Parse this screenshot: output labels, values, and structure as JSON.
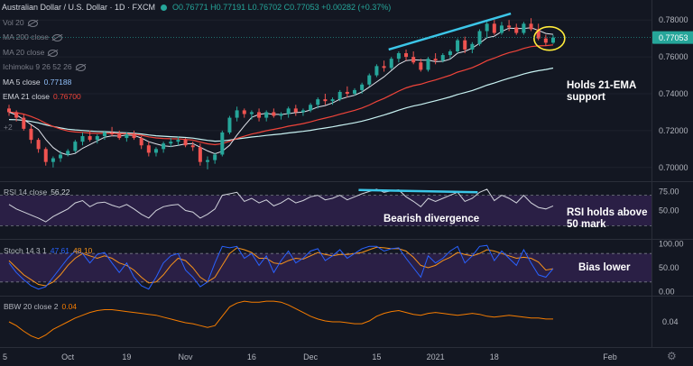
{
  "header": {
    "symbol": "Australian Dollar / U.S. Dollar · 1D · FXCM",
    "ohlc": "O0.76771 H0.77191 L0.76702 C0.77053 +0.00282 (+0.37%)"
  },
  "indicators": {
    "vol": {
      "label": "Vol 20"
    },
    "ma200": {
      "label": "MA 200 close"
    },
    "ma20": {
      "label": "MA 20 close"
    },
    "ichimoku": {
      "label": "Ichimoku 9 26 52 26"
    },
    "ma5": {
      "label": "MA 5 close",
      "value": "0.77188"
    },
    "ema21": {
      "label": "EMA 21 close",
      "value": "0.76700"
    },
    "hidden_label": "",
    "plus2": "+2"
  },
  "annotations": {
    "ema_support_1": "Holds 21-EMA",
    "ema_support_2": "support",
    "bearish_div": "Bearish divergence",
    "rsi_holds_1": "RSI holds above",
    "rsi_holds_2": "50 mark",
    "bias": "Bias lower"
  },
  "panes": {
    "rsi": {
      "label": "RSI 14 close",
      "value": "56.22"
    },
    "stoch": {
      "label": "Stoch 14 3 1",
      "k": "47.61",
      "d": "48.10"
    },
    "bbw": {
      "label": "BBW 20 close 2",
      "value": "0.04"
    }
  },
  "colors": {
    "up": "#26a69a",
    "down": "#ef5350",
    "ema21": "#f0443a",
    "ma5": "#e0e3eb",
    "ma_slow": "#c8f2f2",
    "trend": "#3cc6e8",
    "stoch_k": "#2962ff",
    "stoch_d": "#f7931a",
    "rsi": "#d1d4dc",
    "band": "#2a1f45",
    "bbw": "#f57c00",
    "circle": "#ffeb3b"
  },
  "chart_data": [
    {
      "type": "candlestick",
      "pane": "price",
      "ylim": [
        0.695,
        0.785
      ],
      "yticks": [
        "0.78000",
        "0.76000",
        "0.74000",
        "0.72000",
        "0.70000"
      ],
      "last_price": "0.77053",
      "xticks": [
        "5",
        "Oct",
        "19",
        "Nov",
        "16",
        "Dec",
        "15",
        "2021",
        "18",
        "Feb"
      ],
      "ohlc": [
        [
          0.732,
          0.734,
          0.728,
          0.73
        ],
        [
          0.73,
          0.731,
          0.725,
          0.727
        ],
        [
          0.727,
          0.729,
          0.72,
          0.721
        ],
        [
          0.721,
          0.723,
          0.713,
          0.715
        ],
        [
          0.715,
          0.716,
          0.708,
          0.71
        ],
        [
          0.71,
          0.711,
          0.701,
          0.703
        ],
        [
          0.703,
          0.706,
          0.7,
          0.705
        ],
        [
          0.705,
          0.709,
          0.703,
          0.707
        ],
        [
          0.707,
          0.71,
          0.706,
          0.709
        ],
        [
          0.709,
          0.715,
          0.708,
          0.714
        ],
        [
          0.714,
          0.719,
          0.712,
          0.717
        ],
        [
          0.717,
          0.72,
          0.714,
          0.715
        ],
        [
          0.715,
          0.718,
          0.713,
          0.717
        ],
        [
          0.717,
          0.72,
          0.715,
          0.719
        ],
        [
          0.719,
          0.722,
          0.717,
          0.718
        ],
        [
          0.718,
          0.72,
          0.715,
          0.716
        ],
        [
          0.716,
          0.719,
          0.714,
          0.718
        ],
        [
          0.718,
          0.72,
          0.715,
          0.716
        ],
        [
          0.716,
          0.717,
          0.71,
          0.712
        ],
        [
          0.712,
          0.714,
          0.706,
          0.708
        ],
        [
          0.708,
          0.711,
          0.706,
          0.71
        ],
        [
          0.71,
          0.714,
          0.708,
          0.713
        ],
        [
          0.713,
          0.716,
          0.711,
          0.714
        ],
        [
          0.714,
          0.717,
          0.712,
          0.715
        ],
        [
          0.715,
          0.716,
          0.711,
          0.712
        ],
        [
          0.712,
          0.714,
          0.709,
          0.711
        ],
        [
          0.711,
          0.713,
          0.701,
          0.703
        ],
        [
          0.703,
          0.706,
          0.699,
          0.704
        ],
        [
          0.704,
          0.708,
          0.702,
          0.707
        ],
        [
          0.707,
          0.72,
          0.706,
          0.719
        ],
        [
          0.719,
          0.728,
          0.718,
          0.727
        ],
        [
          0.727,
          0.733,
          0.725,
          0.731
        ],
        [
          0.731,
          0.732,
          0.727,
          0.729
        ],
        [
          0.729,
          0.731,
          0.726,
          0.73
        ],
        [
          0.73,
          0.732,
          0.725,
          0.727
        ],
        [
          0.727,
          0.731,
          0.725,
          0.73
        ],
        [
          0.73,
          0.732,
          0.727,
          0.728
        ],
        [
          0.728,
          0.73,
          0.726,
          0.729
        ],
        [
          0.729,
          0.733,
          0.727,
          0.732
        ],
        [
          0.732,
          0.734,
          0.728,
          0.73
        ],
        [
          0.73,
          0.732,
          0.728,
          0.731
        ],
        [
          0.731,
          0.735,
          0.73,
          0.734
        ],
        [
          0.734,
          0.738,
          0.732,
          0.737
        ],
        [
          0.737,
          0.74,
          0.734,
          0.736
        ],
        [
          0.736,
          0.738,
          0.734,
          0.737
        ],
        [
          0.737,
          0.742,
          0.736,
          0.741
        ],
        [
          0.741,
          0.744,
          0.738,
          0.74
        ],
        [
          0.74,
          0.743,
          0.739,
          0.742
        ],
        [
          0.742,
          0.746,
          0.74,
          0.745
        ],
        [
          0.745,
          0.751,
          0.744,
          0.75
        ],
        [
          0.75,
          0.756,
          0.749,
          0.755
        ],
        [
          0.755,
          0.758,
          0.752,
          0.754
        ],
        [
          0.754,
          0.76,
          0.753,
          0.759
        ],
        [
          0.759,
          0.763,
          0.757,
          0.762
        ],
        [
          0.762,
          0.764,
          0.758,
          0.76
        ],
        [
          0.76,
          0.763,
          0.756,
          0.757
        ],
        [
          0.757,
          0.759,
          0.752,
          0.753
        ],
        [
          0.753,
          0.76,
          0.752,
          0.759
        ],
        [
          0.759,
          0.762,
          0.756,
          0.758
        ],
        [
          0.758,
          0.762,
          0.757,
          0.761
        ],
        [
          0.761,
          0.764,
          0.759,
          0.763
        ],
        [
          0.763,
          0.77,
          0.762,
          0.769
        ],
        [
          0.769,
          0.771,
          0.762,
          0.764
        ],
        [
          0.764,
          0.768,
          0.762,
          0.767
        ],
        [
          0.767,
          0.775,
          0.766,
          0.774
        ],
        [
          0.774,
          0.779,
          0.77,
          0.778
        ],
        [
          0.778,
          0.78,
          0.772,
          0.773
        ],
        [
          0.773,
          0.779,
          0.772,
          0.777
        ],
        [
          0.777,
          0.78,
          0.774,
          0.776
        ],
        [
          0.776,
          0.778,
          0.772,
          0.773
        ],
        [
          0.773,
          0.779,
          0.772,
          0.778
        ],
        [
          0.778,
          0.781,
          0.774,
          0.775
        ],
        [
          0.775,
          0.778,
          0.769,
          0.77
        ],
        [
          0.77,
          0.772,
          0.766,
          0.7677
        ],
        [
          0.7677,
          0.7719,
          0.767,
          0.7705
        ]
      ]
    },
    {
      "type": "line",
      "pane": "rsi",
      "ylim": [
        15,
        85
      ],
      "yticks": [
        "75.00",
        "50.00"
      ],
      "bands": [
        70,
        30
      ],
      "values": [
        58,
        52,
        48,
        44,
        40,
        35,
        42,
        47,
        52,
        60,
        63,
        55,
        60,
        61,
        57,
        54,
        58,
        52,
        45,
        40,
        50,
        55,
        57,
        58,
        50,
        48,
        40,
        45,
        52,
        70,
        72,
        74,
        62,
        66,
        60,
        64,
        56,
        60,
        66,
        60,
        63,
        68,
        70,
        64,
        66,
        70,
        64,
        68,
        72,
        75,
        78,
        74,
        76,
        77,
        68,
        62,
        55,
        66,
        62,
        66,
        70,
        74,
        62,
        66,
        74,
        78,
        63,
        70,
        66,
        60,
        70,
        60,
        54,
        52,
        56
      ]
    },
    {
      "type": "line",
      "pane": "stoch",
      "ylim": [
        -5,
        105
      ],
      "yticks": [
        "100.00",
        "50.00",
        "0.00"
      ],
      "bands": [
        80,
        20
      ],
      "k": [
        60,
        40,
        25,
        12,
        5,
        10,
        30,
        50,
        70,
        85,
        80,
        60,
        78,
        82,
        60,
        40,
        60,
        30,
        12,
        5,
        30,
        60,
        75,
        80,
        45,
        30,
        10,
        20,
        60,
        95,
        92,
        95,
        70,
        80,
        55,
        75,
        40,
        65,
        85,
        60,
        70,
        85,
        90,
        65,
        75,
        88,
        70,
        80,
        90,
        95,
        95,
        85,
        90,
        92,
        70,
        50,
        30,
        75,
        60,
        70,
        85,
        95,
        60,
        75,
        95,
        97,
        65,
        85,
        70,
        55,
        88,
        60,
        35,
        30,
        48
      ],
      "d": [
        65,
        50,
        35,
        25,
        15,
        12,
        20,
        35,
        55,
        70,
        80,
        75,
        70,
        75,
        70,
        60,
        55,
        45,
        30,
        18,
        20,
        35,
        55,
        70,
        65,
        50,
        30,
        20,
        30,
        55,
        80,
        92,
        88,
        82,
        70,
        70,
        60,
        58,
        65,
        70,
        68,
        75,
        82,
        78,
        75,
        78,
        78,
        80,
        82,
        88,
        93,
        92,
        90,
        90,
        85,
        72,
        55,
        50,
        55,
        65,
        72,
        82,
        78,
        75,
        80,
        88,
        85,
        80,
        75,
        70,
        72,
        70,
        62,
        45,
        48
      ]
    },
    {
      "type": "line",
      "pane": "bbw",
      "ylim": [
        0.015,
        0.065
      ],
      "yticks": [
        "0.04"
      ],
      "values": [
        0.04,
        0.036,
        0.03,
        0.025,
        0.022,
        0.026,
        0.032,
        0.036,
        0.04,
        0.044,
        0.047,
        0.05,
        0.052,
        0.053,
        0.053,
        0.052,
        0.051,
        0.05,
        0.049,
        0.048,
        0.047,
        0.045,
        0.043,
        0.041,
        0.039,
        0.038,
        0.036,
        0.034,
        0.036,
        0.046,
        0.056,
        0.06,
        0.062,
        0.061,
        0.061,
        0.062,
        0.062,
        0.061,
        0.058,
        0.054,
        0.05,
        0.046,
        0.043,
        0.041,
        0.04,
        0.04,
        0.039,
        0.038,
        0.038,
        0.041,
        0.046,
        0.049,
        0.051,
        0.052,
        0.05,
        0.048,
        0.047,
        0.049,
        0.05,
        0.049,
        0.048,
        0.047,
        0.048,
        0.049,
        0.048,
        0.046,
        0.045,
        0.046,
        0.047,
        0.046,
        0.045,
        0.044,
        0.044,
        0.043,
        0.043
      ]
    }
  ]
}
